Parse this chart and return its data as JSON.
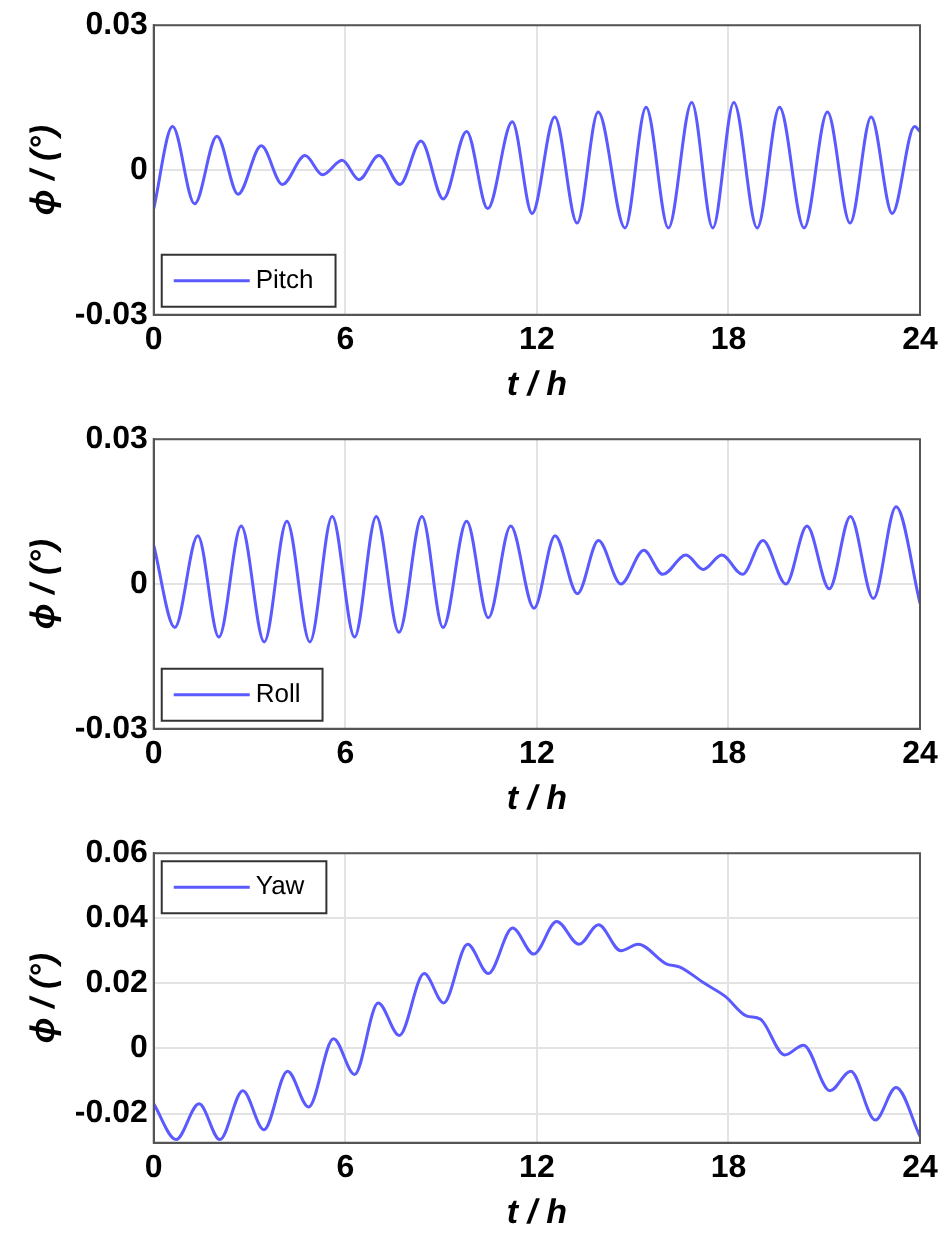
{
  "chart_data": [
    {
      "type": "line",
      "xlabel": "t / h",
      "ylabel": "ϕ / (°)",
      "xlim": [
        0,
        24
      ],
      "xticks": [
        0,
        6,
        12,
        18,
        24
      ],
      "ylim": [
        -0.03,
        0.03
      ],
      "yticks": [
        -0.03,
        0,
        0.03
      ],
      "grid": true,
      "legend": "bottom left",
      "marker": "none",
      "line_style": "solid",
      "x": [
        0,
        0.59,
        1.28,
        1.98,
        2.64,
        3.37,
        4.03,
        4.74,
        5.29,
        5.9,
        6.43,
        7.05,
        7.71,
        8.37,
        9.07,
        9.8,
        10.46,
        11.23,
        11.85,
        12.56,
        13.26,
        13.92,
        14.76,
        15.42,
        16.12,
        16.85,
        17.51,
        18.17,
        18.9,
        19.6,
        20.37,
        21.1,
        21.81,
        22.47,
        23.13,
        23.83,
        24
      ],
      "series": [
        {
          "name": "Pitch",
          "color": "#5a5aff",
          "values": [
            -0.008,
            0.009,
            -0.007,
            0.007,
            -0.005,
            0.005,
            -0.003,
            0.003,
            -0.001,
            0.002,
            -0.002,
            0.003,
            -0.003,
            0.006,
            -0.006,
            0.008,
            -0.008,
            0.01,
            -0.009,
            0.011,
            -0.011,
            0.012,
            -0.012,
            0.013,
            -0.012,
            0.014,
            -0.012,
            0.014,
            -0.012,
            0.013,
            -0.012,
            0.012,
            -0.011,
            0.011,
            -0.009,
            0.009,
            0.008
          ]
        }
      ]
    },
    {
      "type": "line",
      "xlabel": "t / h",
      "ylabel": "ϕ / (°)",
      "xlim": [
        0,
        24
      ],
      "xticks": [
        0,
        6,
        12,
        18,
        24
      ],
      "ylim": [
        -0.03,
        0.03
      ],
      "yticks": [
        -0.03,
        0,
        0.03
      ],
      "grid": true,
      "legend": "bottom left",
      "marker": "none",
      "line_style": "solid",
      "x": [
        0,
        0.66,
        1.38,
        2.04,
        2.74,
        3.46,
        4.17,
        4.89,
        5.59,
        6.29,
        6.97,
        7.68,
        8.4,
        9.06,
        9.8,
        10.48,
        11.18,
        11.91,
        12.57,
        13.27,
        13.93,
        14.63,
        15.35,
        15.94,
        16.67,
        17.21,
        17.79,
        18.44,
        19.08,
        19.8,
        20.46,
        21.16,
        21.82,
        22.54,
        23.25,
        24
      ],
      "series": [
        {
          "name": "Roll",
          "color": "#5a5aff",
          "values": [
            0.008,
            -0.009,
            0.01,
            -0.011,
            0.012,
            -0.012,
            0.013,
            -0.012,
            0.014,
            -0.011,
            0.014,
            -0.01,
            0.014,
            -0.009,
            0.013,
            -0.007,
            0.012,
            -0.005,
            0.01,
            -0.002,
            0.009,
            0,
            0.007,
            0.002,
            0.006,
            0.003,
            0.006,
            0.002,
            0.009,
            0,
            0.012,
            -0.001,
            0.014,
            -0.003,
            0.016,
            -0.004
          ]
        }
      ]
    },
    {
      "type": "line",
      "xlabel": "t / h",
      "ylabel": "ϕ / (°)",
      "xlim": [
        0,
        24
      ],
      "xticks": [
        0,
        6,
        12,
        18,
        24
      ],
      "ylim": [
        -0.029,
        0.06
      ],
      "yticks": [
        -0.02,
        0,
        0.02,
        0.04,
        0.06
      ],
      "grid": true,
      "legend": "top left",
      "marker": "none",
      "line_style": "solid",
      "x": [
        0,
        0.7,
        1.42,
        2.07,
        2.79,
        3.45,
        4.19,
        4.85,
        5.63,
        6.29,
        7.03,
        7.69,
        8.47,
        9.08,
        9.83,
        10.48,
        11.24,
        11.9,
        12.62,
        13.32,
        13.93,
        14.63,
        15.17,
        16.05,
        16.48,
        17.25,
        17.9,
        18.56,
        19,
        19.76,
        20.35,
        21.18,
        21.83,
        22.6,
        23.25,
        24
      ],
      "series": [
        {
          "name": "Yaw",
          "color": "#5a5aff",
          "values": [
            -0.017,
            -0.028,
            -0.017,
            -0.028,
            -0.013,
            -0.025,
            -0.007,
            -0.018,
            0.003,
            -0.008,
            0.014,
            0.004,
            0.023,
            0.014,
            0.032,
            0.023,
            0.037,
            0.029,
            0.039,
            0.032,
            0.038,
            0.03,
            0.032,
            0.026,
            0.025,
            0.02,
            0.016,
            0.01,
            0.009,
            -0.002,
            0.001,
            -0.013,
            -0.007,
            -0.022,
            -0.012,
            -0.027
          ]
        }
      ]
    }
  ]
}
